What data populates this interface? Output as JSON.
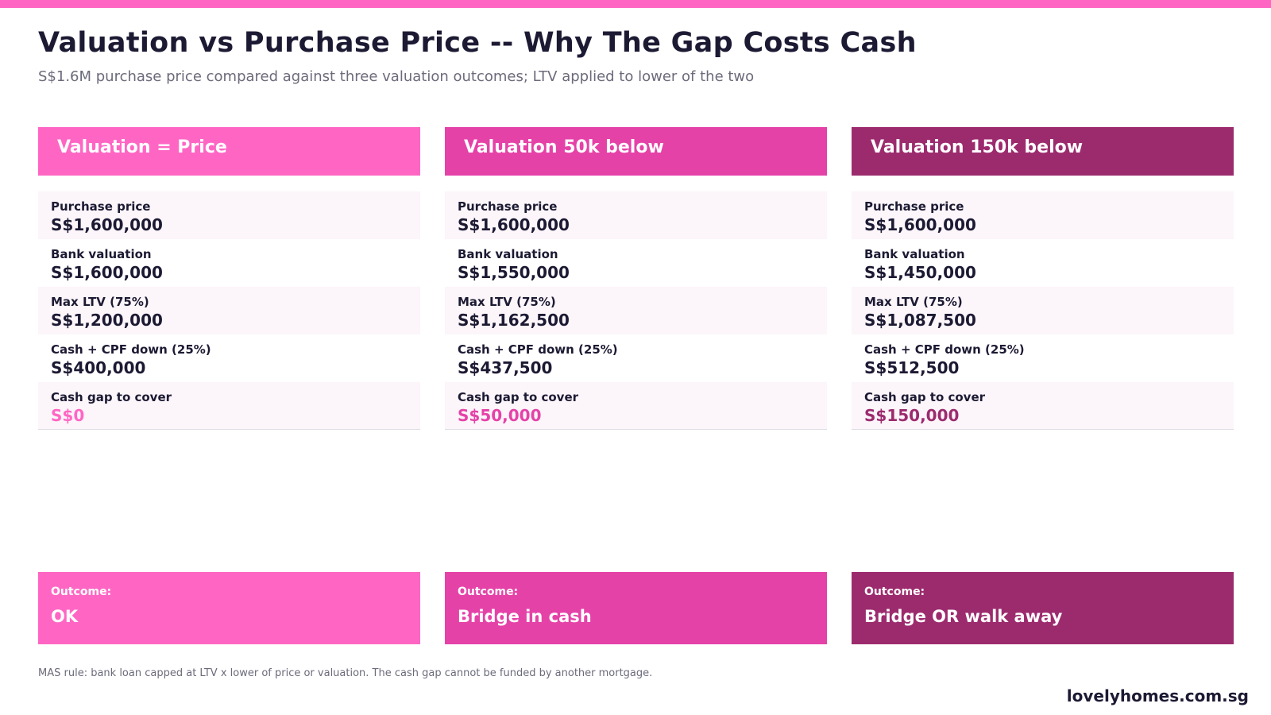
{
  "colors": {
    "accent_1": "#ff66c4",
    "accent_2": "#e542a8",
    "accent_3": "#9c2b6e",
    "text_dark": "#1c1a33",
    "text_muted": "#6b6b7b"
  },
  "header": {
    "title": "Valuation vs Purchase Price -- Why The Gap Costs Cash",
    "subtitle": "S$1.6M purchase price compared against three valuation outcomes; LTV applied to lower of the two"
  },
  "columns": [
    {
      "title": "Valuation = Price",
      "rows": [
        {
          "label": "Purchase price",
          "value": "S$1,600,000"
        },
        {
          "label": "Bank valuation",
          "value": "S$1,600,000"
        },
        {
          "label": "Max LTV (75%)",
          "value": "S$1,200,000"
        },
        {
          "label": "Cash + CPF down (25%)",
          "value": "S$400,000"
        },
        {
          "label": "Cash gap to cover",
          "value": "S$0"
        }
      ],
      "outcome_label": "Outcome:",
      "outcome_value": "OK"
    },
    {
      "title": "Valuation 50k below",
      "rows": [
        {
          "label": "Purchase price",
          "value": "S$1,600,000"
        },
        {
          "label": "Bank valuation",
          "value": "S$1,550,000"
        },
        {
          "label": "Max LTV (75%)",
          "value": "S$1,162,500"
        },
        {
          "label": "Cash + CPF down (25%)",
          "value": "S$437,500"
        },
        {
          "label": "Cash gap to cover",
          "value": "S$50,000"
        }
      ],
      "outcome_label": "Outcome:",
      "outcome_value": "Bridge in cash"
    },
    {
      "title": "Valuation 150k below",
      "rows": [
        {
          "label": "Purchase price",
          "value": "S$1,600,000"
        },
        {
          "label": "Bank valuation",
          "value": "S$1,450,000"
        },
        {
          "label": "Max LTV (75%)",
          "value": "S$1,087,500"
        },
        {
          "label": "Cash + CPF down (25%)",
          "value": "S$512,500"
        },
        {
          "label": "Cash gap to cover",
          "value": "S$150,000"
        }
      ],
      "outcome_label": "Outcome:",
      "outcome_value": "Bridge OR walk away"
    }
  ],
  "footer": {
    "note": "MAS rule: bank loan capped at LTV x lower of price or valuation. The cash gap cannot be funded by another mortgage.",
    "brand": "lovelyhomes.com.sg"
  }
}
